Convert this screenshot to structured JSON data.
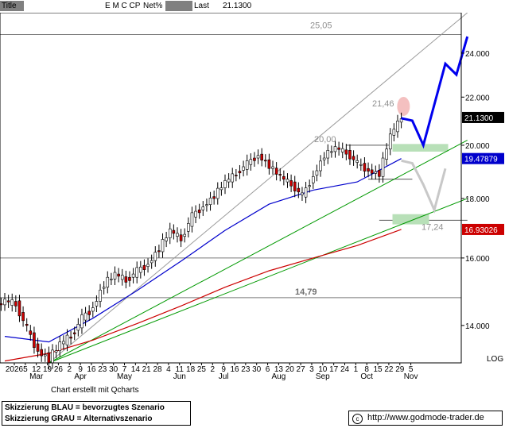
{
  "header": {
    "title_label": "Title",
    "symbol": "E M C CP",
    "change_label": "Net%",
    "change_value": "",
    "last_label": "Last",
    "last_value": "21.1300"
  },
  "chart_data": {
    "type": "candlestick",
    "title": "",
    "xlabel": "",
    "ylabel": "",
    "scale": "log",
    "ylim": [
      13.0,
      26.0
    ],
    "y_ticks": [
      {
        "value": 14.0,
        "label": "14.000"
      },
      {
        "value": 16.0,
        "label": "16.000"
      },
      {
        "value": 18.0,
        "label": "18.000"
      },
      {
        "value": 20.0,
        "label": "20.000"
      },
      {
        "value": 22.0,
        "label": "22.000"
      },
      {
        "value": 24.0,
        "label": "24.000"
      }
    ],
    "scale_label": "LOG",
    "x_ticks": [
      "2026",
      "5",
      "12",
      "19",
      "26",
      "2",
      "9",
      "16",
      "23",
      "30",
      "7",
      "14",
      "21",
      "28",
      "4",
      "11",
      "18",
      "25",
      "2",
      "9",
      "16",
      "23",
      "30",
      "6",
      "13",
      "20",
      "27",
      "3",
      "10",
      "17",
      "24",
      "1",
      "8",
      "15",
      "22",
      "29",
      "5"
    ],
    "months": [
      "Mar",
      "Apr",
      "May",
      "Jun",
      "Jul",
      "Aug",
      "Sep",
      "Oct",
      "Nov"
    ],
    "price_series": [
      {
        "week": 0,
        "close": 14.7
      },
      {
        "week": 1,
        "close": 14.6
      },
      {
        "week": 2,
        "close": 13.9
      },
      {
        "week": 3,
        "close": 13.3
      },
      {
        "week": 4,
        "close": 13.1
      },
      {
        "week": 5,
        "close": 13.5
      },
      {
        "week": 6,
        "close": 13.7
      },
      {
        "week": 7,
        "close": 14.2
      },
      {
        "week": 8,
        "close": 14.5
      },
      {
        "week": 9,
        "close": 15.2
      },
      {
        "week": 10,
        "close": 15.5
      },
      {
        "week": 11,
        "close": 15.3
      },
      {
        "week": 12,
        "close": 15.6
      },
      {
        "week": 13,
        "close": 15.8
      },
      {
        "week": 14,
        "close": 16.3
      },
      {
        "week": 15,
        "close": 16.9
      },
      {
        "week": 16,
        "close": 16.6
      },
      {
        "week": 17,
        "close": 17.4
      },
      {
        "week": 18,
        "close": 17.7
      },
      {
        "week": 19,
        "close": 18.1
      },
      {
        "week": 20,
        "close": 18.6
      },
      {
        "week": 21,
        "close": 18.9
      },
      {
        "week": 22,
        "close": 19.3
      },
      {
        "week": 23,
        "close": 19.6
      },
      {
        "week": 24,
        "close": 19.2
      },
      {
        "week": 25,
        "close": 18.8
      },
      {
        "week": 26,
        "close": 18.5
      },
      {
        "week": 27,
        "close": 18.1
      },
      {
        "week": 28,
        "close": 18.8
      },
      {
        "week": 29,
        "close": 19.6
      },
      {
        "week": 30,
        "close": 19.9
      },
      {
        "week": 31,
        "close": 19.7
      },
      {
        "week": 32,
        "close": 19.3
      },
      {
        "week": 33,
        "close": 19.0
      },
      {
        "week": 34,
        "close": 18.9
      },
      {
        "week": 35,
        "close": 20.4
      },
      {
        "week": 36,
        "close": 21.13
      }
    ],
    "moving_averages": [
      {
        "color": "#0000cc",
        "points": [
          [
            0,
            13.7
          ],
          [
            4,
            13.55
          ],
          [
            8,
            14.2
          ],
          [
            12,
            15.0
          ],
          [
            16,
            15.9
          ],
          [
            20,
            16.9
          ],
          [
            24,
            17.8
          ],
          [
            28,
            18.3
          ],
          [
            32,
            18.6
          ],
          [
            36,
            19.48
          ]
        ],
        "last_label": "19.47879"
      },
      {
        "color": "#cc0000",
        "points": [
          [
            0,
            13.05
          ],
          [
            4,
            13.25
          ],
          [
            8,
            13.6
          ],
          [
            12,
            14.05
          ],
          [
            16,
            14.55
          ],
          [
            20,
            15.1
          ],
          [
            24,
            15.6
          ],
          [
            28,
            16.0
          ],
          [
            32,
            16.4
          ],
          [
            36,
            16.93
          ]
        ],
        "last_label": "16.93026"
      }
    ],
    "price_label": {
      "value": 21.13,
      "label": "21.1300"
    },
    "horizontal_levels": [
      {
        "value": 25.05,
        "label": "25,05"
      },
      {
        "value": 21.46,
        "label": "21,46"
      },
      {
        "value": 20.0,
        "label": "20,00"
      },
      {
        "value": 17.24,
        "label": "17,24"
      },
      {
        "value": 14.79,
        "label": "14,79"
      }
    ],
    "level_line_values": [
      24.9,
      16.0,
      14.79
    ],
    "scenarios": [
      {
        "name": "Skizzierung BLAU = bevorzugtes Szenario",
        "color": "#0000ee",
        "points": [
          [
            36,
            21.1
          ],
          [
            37,
            21.0
          ],
          [
            38,
            20.0
          ],
          [
            40,
            23.5
          ],
          [
            41,
            23.0
          ],
          [
            42,
            24.8
          ]
        ]
      },
      {
        "name": "Skizzierung GRAU = Alternativszenario",
        "color": "#c8c8c8",
        "points": [
          [
            36,
            19.4
          ],
          [
            37,
            19.3
          ],
          [
            38,
            18.5
          ],
          [
            39,
            17.6
          ],
          [
            40,
            19.1
          ]
        ]
      }
    ],
    "trend_lines": [
      {
        "color": "#9a9a9a",
        "from": [
          4,
          13.0
        ],
        "to": [
          42,
          26.0
        ]
      },
      {
        "color": "#009900",
        "from": [
          4,
          13.0
        ],
        "to": [
          42,
          20.2
        ]
      },
      {
        "color": "#009900",
        "from": [
          4,
          13.0
        ],
        "to": [
          42,
          18.0
        ]
      }
    ],
    "credit": "Chart erstellt mit Qcharts"
  },
  "legend": {
    "blue": "Skizzierung BLAU = bevorzugtes Szenario",
    "grey": "Skizzierung GRAU = Alternativszenario"
  },
  "source": {
    "copyright_symbol": "c",
    "url": "http://www.godmode-trader.de"
  },
  "colors": {
    "header_gray": "#808080",
    "price_box": "#000000",
    "blue_ma_box": "#0000cc",
    "red_ma_box": "#cc0000",
    "support_zone": "#b8e0b8",
    "resistance_marker": "#f4c0c0"
  }
}
